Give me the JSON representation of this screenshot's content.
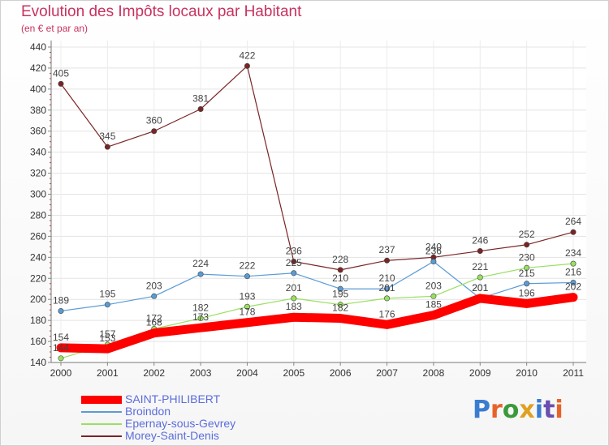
{
  "title": "Evolution des Impôts locaux par Habitant",
  "subtitle": "(en € et par an)",
  "logo": {
    "text": "Proxiti",
    "colors": [
      "#3a7cd1",
      "#e8632a",
      "#3a9a3a",
      "#e0a020",
      "#3a7cd1",
      "#6a4fb0",
      "#e8632a"
    ]
  },
  "chart_data": {
    "type": "line",
    "title": "Evolution des Impôts locaux par Habitant",
    "subtitle": "(en € et par an)",
    "categories": [
      "2000",
      "2001",
      "2002",
      "2003",
      "2004",
      "2005",
      "2006",
      "2007",
      "2008",
      "2009",
      "2010",
      "2011"
    ],
    "ylim": [
      140,
      440
    ],
    "yticks": [
      "140",
      "160",
      "180",
      "200",
      "220",
      "240",
      "260",
      "280",
      "300",
      "320",
      "340",
      "360",
      "380",
      "400",
      "420",
      "440"
    ],
    "series": [
      {
        "name": "SAINT-PHILIBERT",
        "color": "#ff0000",
        "values": [
          154,
          153,
          168,
          173,
          178,
          183,
          182,
          176,
          185,
          201,
          196,
          202
        ],
        "labels": [
          "154",
          "153",
          "168",
          "173",
          "178",
          "183",
          "182",
          "176",
          "185",
          "201",
          "196",
          "202"
        ]
      },
      {
        "name": "Broindon",
        "color": "#5a9bd5",
        "values": [
          189,
          195,
          203,
          224,
          222,
          225,
          210,
          210,
          236,
          201,
          215,
          216
        ],
        "labels": [
          "189",
          "195",
          "203",
          "224",
          "222",
          "225",
          "210",
          "210",
          "236",
          "201",
          "215",
          "216"
        ]
      },
      {
        "name": "Epernay-sous-Gevrey",
        "color": "#99e060",
        "values": [
          144,
          157,
          172,
          182,
          193,
          201,
          195,
          201,
          203,
          221,
          230,
          234
        ],
        "labels": [
          "144",
          "157",
          "172",
          "182",
          "193",
          "201",
          "195",
          "201",
          "203",
          "221",
          "230",
          "234"
        ]
      },
      {
        "name": "Morey-Saint-Denis",
        "color": "#7a2424",
        "values": [
          405,
          345,
          360,
          381,
          422,
          236,
          228,
          237,
          240,
          246,
          252,
          264
        ],
        "labels": [
          "405",
          "345",
          "360",
          "381",
          "422",
          "236",
          "228",
          "237",
          "240",
          "246",
          "252",
          "264"
        ]
      }
    ],
    "legend": "bottom-left"
  }
}
